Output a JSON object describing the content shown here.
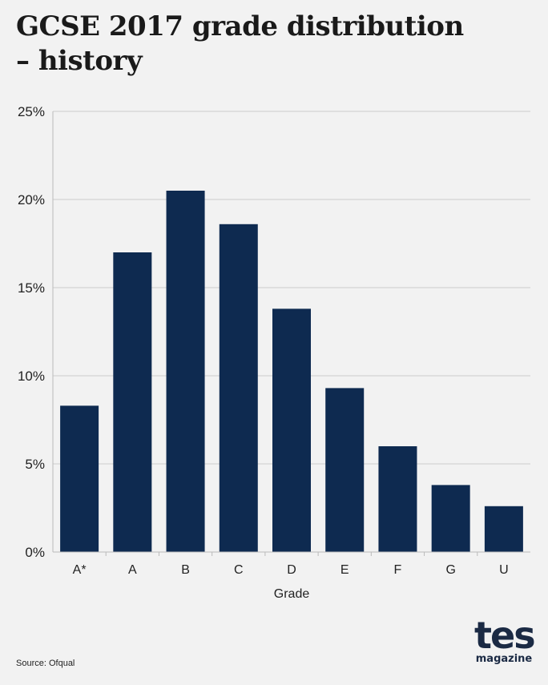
{
  "header": {
    "title_line1": "GCSE 2017 grade distribution",
    "title_line2": "– history"
  },
  "chart_data": {
    "type": "bar",
    "title": "GCSE 2017 grade distribution – history",
    "categories": [
      "A*",
      "A",
      "B",
      "C",
      "D",
      "E",
      "F",
      "G",
      "U"
    ],
    "values": [
      8.3,
      17.0,
      20.5,
      18.6,
      13.8,
      9.3,
      6.0,
      3.8,
      2.6
    ],
    "xlabel": "Grade",
    "ylabel": "",
    "ylim": [
      0,
      25
    ],
    "yticks": [
      0,
      5,
      10,
      15,
      20,
      25
    ],
    "ytick_labels": [
      "0%",
      "5%",
      "10%",
      "15%",
      "20%",
      "25%"
    ],
    "grid": true,
    "bar_color": "#0e2a50",
    "grid_color": "#cccccc"
  },
  "footer": {
    "source": "Source: Ofqual",
    "logo_main": "tes",
    "logo_sub": "magazine"
  }
}
